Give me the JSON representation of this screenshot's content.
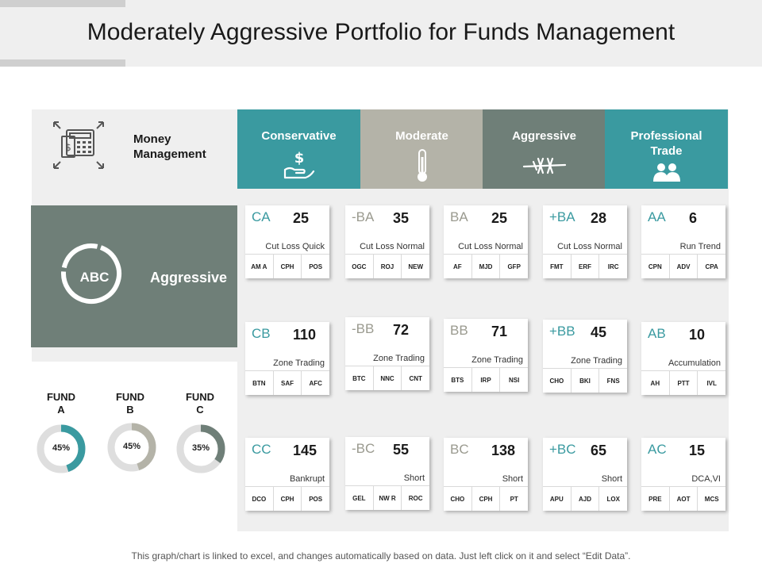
{
  "title": "Moderately Aggressive Portfolio for Funds Management",
  "money_management": {
    "label_line1": "Money",
    "label_line2": "Management",
    "icon": "calculator-money-icon"
  },
  "categories": [
    {
      "label_line1": "Conservative",
      "label_line2": "",
      "icon": "hand-dollar-icon",
      "color": "#3a9aa0"
    },
    {
      "label_line1": "Moderate",
      "label_line2": "",
      "icon": "thermometer-icon",
      "color": "#b4b3a8"
    },
    {
      "label_line1": "Aggressive",
      "label_line2": "",
      "icon": "barbed-wire-icon",
      "color": "#6f7f78"
    },
    {
      "label_line1": "Professional",
      "label_line2": "Trade",
      "icon": "people-icon",
      "color": "#3a9aa0"
    }
  ],
  "abc": {
    "label": "ABC",
    "side_label": "Aggressive"
  },
  "funds": [
    {
      "name_line1": "FUND",
      "name_line2": "A",
      "percent": 45,
      "percent_label": "45%",
      "color": "#3a9aa0"
    },
    {
      "name_line1": "FUND",
      "name_line2": "B",
      "percent": 45,
      "percent_label": "45%",
      "color": "#b4b3a8"
    },
    {
      "name_line1": "FUND",
      "name_line2": "C",
      "percent": 35,
      "percent_label": "35%",
      "color": "#6f7f78"
    }
  ],
  "cards": [
    {
      "code": "CA",
      "number": "25",
      "desc": "Cut Loss Quick",
      "tags": [
        "AM A",
        "CPH",
        "POS"
      ]
    },
    {
      "code": "-BA",
      "number": "35",
      "desc": "Cut Loss Normal",
      "tags": [
        "OGC",
        "ROJ",
        "NEW"
      ]
    },
    {
      "code": "BA",
      "number": "25",
      "desc": "Cut Loss Normal",
      "tags": [
        "AF",
        "MJD",
        "GFP"
      ]
    },
    {
      "code": "+BA",
      "number": "28",
      "desc": "Cut Loss Normal",
      "tags": [
        "FMT",
        "ERF",
        "IRC"
      ]
    },
    {
      "code": "AA",
      "number": "6",
      "desc": "Run Trend",
      "tags": [
        "CPN",
        "ADV",
        "CPA"
      ]
    },
    {
      "code": "CB",
      "number": "110",
      "desc": "Zone Trading",
      "tags": [
        "BTN",
        "SAF",
        "AFC"
      ]
    },
    {
      "code": "-BB",
      "number": "72",
      "desc": "Zone Trading",
      "tags": [
        "BTC",
        "NNC",
        "CNT"
      ]
    },
    {
      "code": "BB",
      "number": "71",
      "desc": "Zone Trading",
      "tags": [
        "BTS",
        "IRP",
        "NSI"
      ]
    },
    {
      "code": "+BB",
      "number": "45",
      "desc": "Zone Trading",
      "tags": [
        "CHO",
        "BKI",
        "FNS"
      ]
    },
    {
      "code": "AB",
      "number": "10",
      "desc": "Accumulation",
      "tags": [
        "AH",
        "PTT",
        "IVL"
      ]
    },
    {
      "code": "CC",
      "number": "145",
      "desc": "Bankrupt",
      "tags": [
        "DCO",
        "CPH",
        "POS"
      ]
    },
    {
      "code": "-BC",
      "number": "55",
      "desc": "Short",
      "tags": [
        "GEL",
        "NW R",
        "ROC"
      ]
    },
    {
      "code": "BC",
      "number": "138",
      "desc": "Short",
      "tags": [
        "CHO",
        "CPH",
        "PT"
      ]
    },
    {
      "code": "+BC",
      "number": "65",
      "desc": "Short",
      "tags": [
        "APU",
        "AJD",
        "LOX"
      ]
    },
    {
      "code": "AC",
      "number": "15",
      "desc": "DCA,VI",
      "tags": [
        "PRE",
        "AOT",
        "MCS"
      ]
    }
  ],
  "footer": "This graph/chart is linked to excel, and changes automatically based on data. Just left click on it and select “Edit Data”."
}
